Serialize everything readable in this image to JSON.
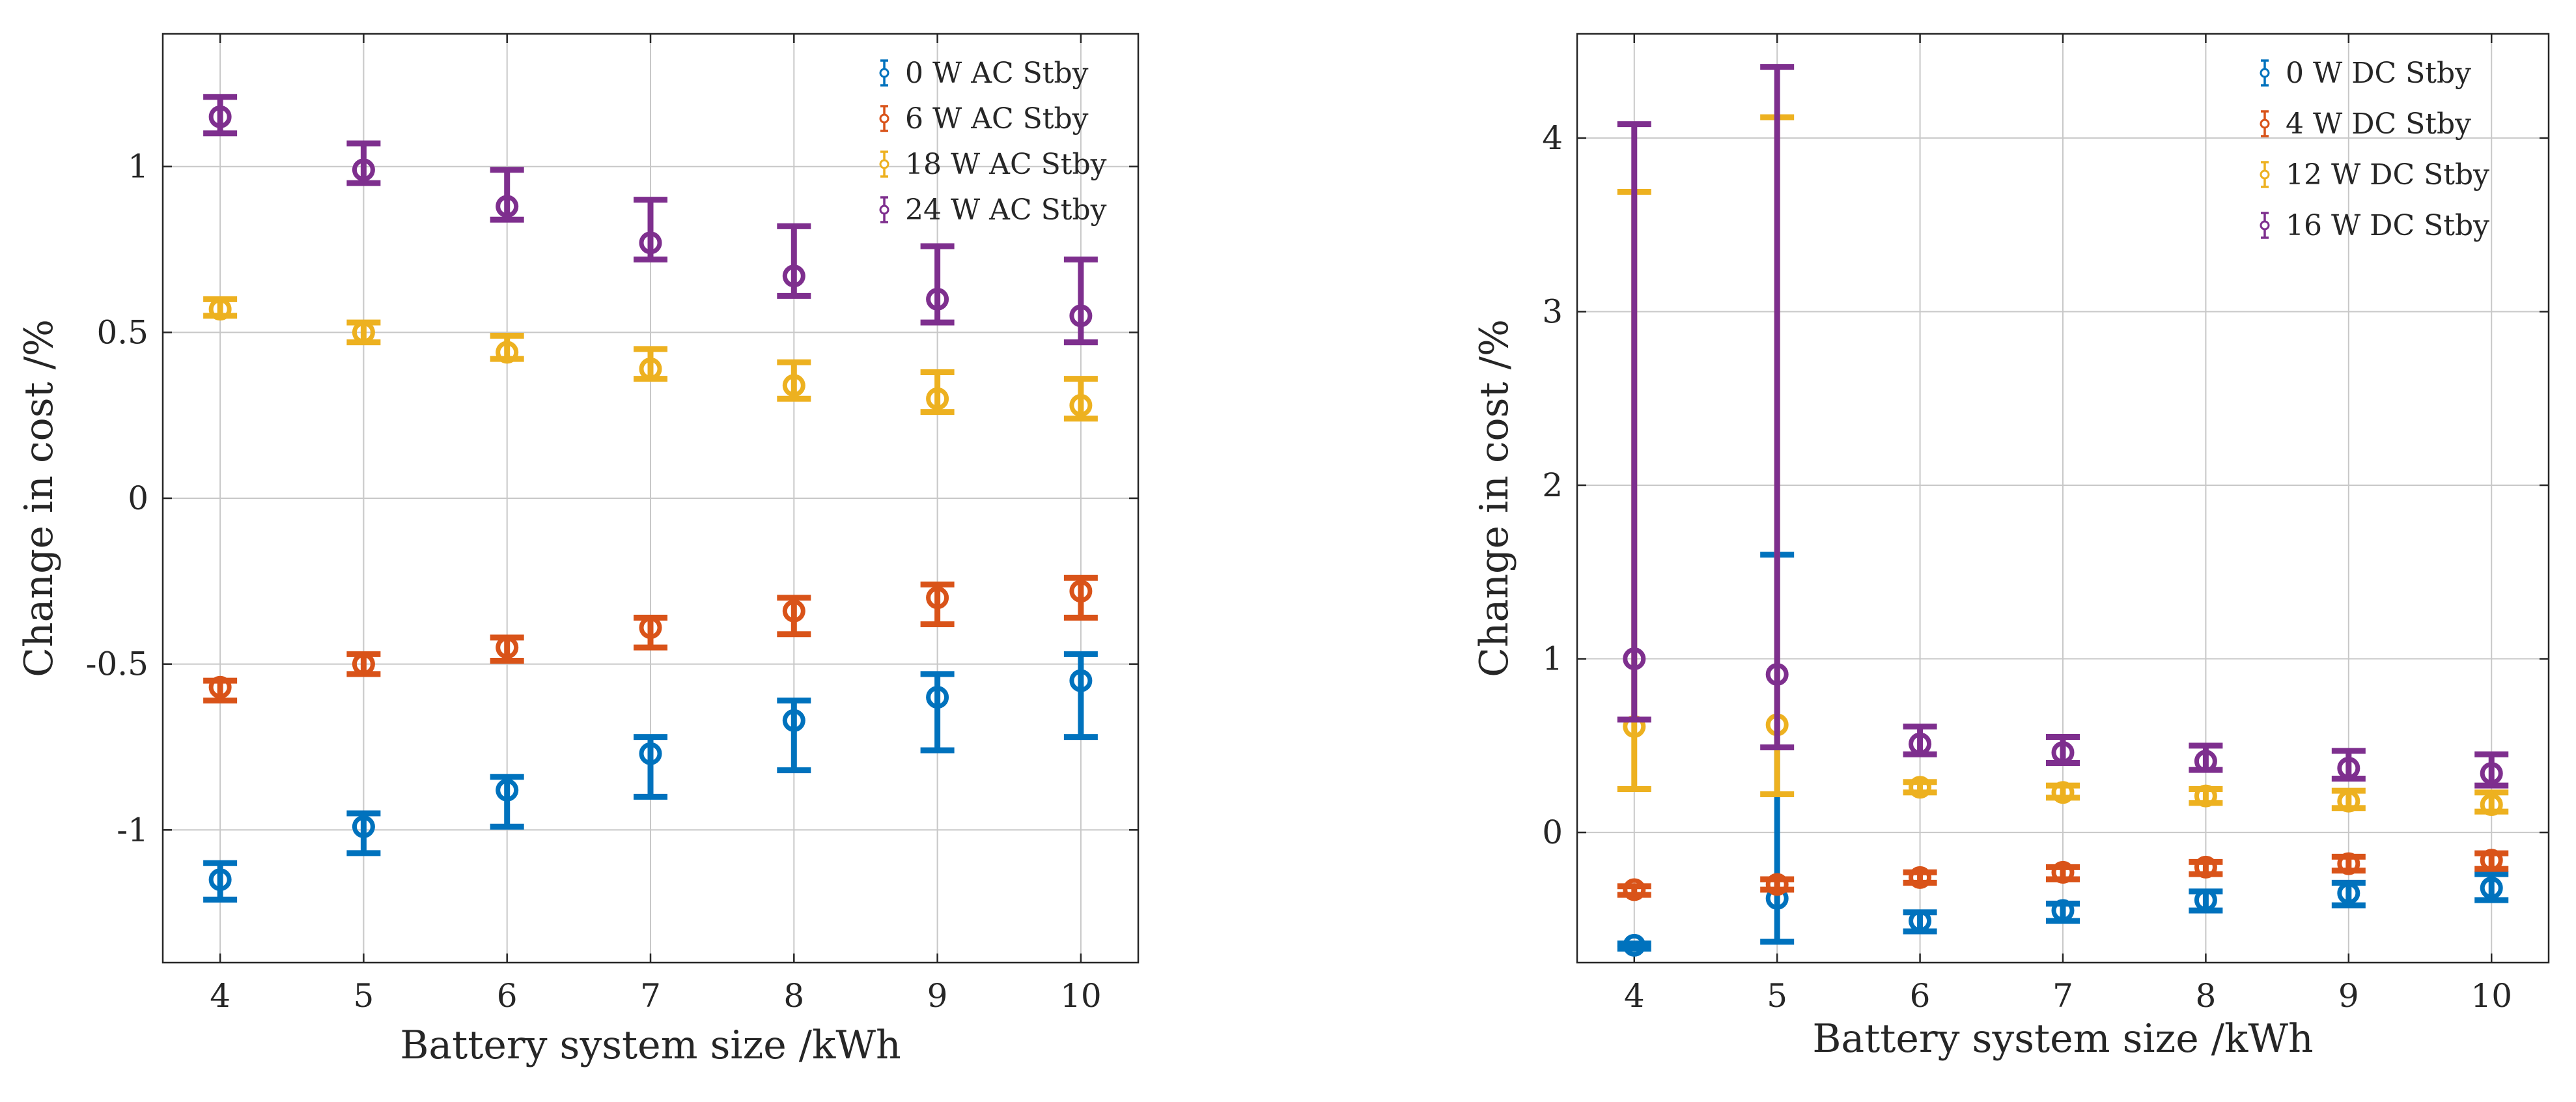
{
  "colors": {
    "blue": "#0072BD",
    "orange": "#D95319",
    "yellow": "#EDB120",
    "purple": "#7E2F8E"
  },
  "chart_data": [
    {
      "type": "scatter",
      "error_bars": true,
      "xlabel": "Battery system size /kWh",
      "ylabel": "Change in cost /%",
      "xlim": [
        3.6,
        10.4
      ],
      "ylim": [
        -1.4,
        1.4
      ],
      "x": [
        4,
        5,
        6,
        7,
        8,
        9,
        10
      ],
      "xticks": [
        "4",
        "5",
        "6",
        "7",
        "8",
        "9",
        "10"
      ],
      "yticks": [
        {
          "value": -1,
          "label": "-1"
        },
        {
          "value": -0.5,
          "label": "-0.5"
        },
        {
          "value": 0,
          "label": "0"
        },
        {
          "value": 0.5,
          "label": "0.5"
        },
        {
          "value": 1,
          "label": "1"
        }
      ],
      "grid": true,
      "legend_position": "top-right",
      "series": [
        {
          "name": "0 W AC Stby",
          "color": "#0072BD",
          "values": [
            -1.15,
            -0.99,
            -0.88,
            -0.77,
            -0.67,
            -0.6,
            -0.55
          ],
          "upper": [
            -1.1,
            -0.95,
            -0.84,
            -0.72,
            -0.61,
            -0.53,
            -0.47
          ],
          "lower": [
            -1.21,
            -1.07,
            -0.99,
            -0.9,
            -0.82,
            -0.76,
            -0.72
          ]
        },
        {
          "name": "6 W AC Stby",
          "color": "#D95319",
          "values": [
            -0.57,
            -0.5,
            -0.45,
            -0.39,
            -0.34,
            -0.3,
            -0.28
          ],
          "upper": [
            -0.55,
            -0.47,
            -0.42,
            -0.36,
            -0.3,
            -0.26,
            -0.24
          ],
          "lower": [
            -0.61,
            -0.53,
            -0.49,
            -0.45,
            -0.41,
            -0.38,
            -0.36
          ]
        },
        {
          "name": "18 W AC Stby",
          "color": "#EDB120",
          "values": [
            0.57,
            0.5,
            0.44,
            0.39,
            0.34,
            0.3,
            0.28
          ],
          "upper": [
            0.6,
            0.53,
            0.49,
            0.45,
            0.41,
            0.38,
            0.36
          ],
          "lower": [
            0.55,
            0.47,
            0.42,
            0.36,
            0.3,
            0.26,
            0.24
          ]
        },
        {
          "name": "24 W AC Stby",
          "color": "#7E2F8E",
          "values": [
            1.15,
            0.99,
            0.88,
            0.77,
            0.67,
            0.6,
            0.55
          ],
          "upper": [
            1.21,
            1.07,
            0.99,
            0.9,
            0.82,
            0.76,
            0.72
          ],
          "lower": [
            1.1,
            0.95,
            0.84,
            0.72,
            0.61,
            0.53,
            0.47
          ]
        }
      ]
    },
    {
      "type": "scatter",
      "error_bars": true,
      "xlabel": "Battery system size /kWh",
      "ylabel": "Change in cost /%",
      "xlim": [
        3.6,
        10.4
      ],
      "ylim": [
        -0.75,
        4.6
      ],
      "x": [
        4,
        5,
        6,
        7,
        8,
        9,
        10
      ],
      "xticks": [
        "4",
        "5",
        "6",
        "7",
        "8",
        "9",
        "10"
      ],
      "yticks": [
        {
          "value": 0,
          "label": "0"
        },
        {
          "value": 1,
          "label": "1"
        },
        {
          "value": 2,
          "label": "2"
        },
        {
          "value": 3,
          "label": "3"
        },
        {
          "value": 4,
          "label": "4"
        }
      ],
      "grid": true,
      "legend_position": "top-right",
      "series": [
        {
          "name": "0 W DC Stby",
          "color": "#0072BD",
          "values": [
            -0.65,
            -0.38,
            -0.51,
            -0.45,
            -0.39,
            -0.35,
            -0.32
          ],
          "upper": [
            -0.64,
            1.6,
            -0.46,
            -0.41,
            -0.34,
            -0.29,
            -0.24
          ],
          "lower": [
            -0.67,
            -0.63,
            -0.57,
            -0.51,
            -0.45,
            -0.42,
            -0.39
          ]
        },
        {
          "name": "4 W DC Stby",
          "color": "#D95319",
          "values": [
            -0.33,
            -0.3,
            -0.26,
            -0.23,
            -0.2,
            -0.18,
            -0.16
          ],
          "upper": [
            -0.31,
            -0.27,
            -0.23,
            -0.2,
            -0.17,
            -0.14,
            -0.12
          ],
          "lower": [
            -0.36,
            -0.33,
            -0.29,
            -0.27,
            -0.24,
            -0.22,
            -0.21
          ]
        },
        {
          "name": "12 W DC Stby",
          "color": "#EDB120",
          "values": [
            0.61,
            0.62,
            0.26,
            0.23,
            0.21,
            0.18,
            0.16
          ],
          "upper": [
            3.69,
            4.12,
            0.29,
            0.27,
            0.25,
            0.24,
            0.23
          ],
          "lower": [
            0.25,
            0.22,
            0.23,
            0.2,
            0.17,
            0.14,
            0.12
          ]
        },
        {
          "name": "16 W DC Stby",
          "color": "#7E2F8E",
          "values": [
            1.0,
            0.91,
            0.51,
            0.46,
            0.41,
            0.37,
            0.34
          ],
          "upper": [
            4.08,
            4.41,
            0.61,
            0.55,
            0.5,
            0.47,
            0.45
          ],
          "lower": [
            0.65,
            0.49,
            0.45,
            0.4,
            0.36,
            0.31,
            0.27
          ]
        }
      ]
    }
  ]
}
